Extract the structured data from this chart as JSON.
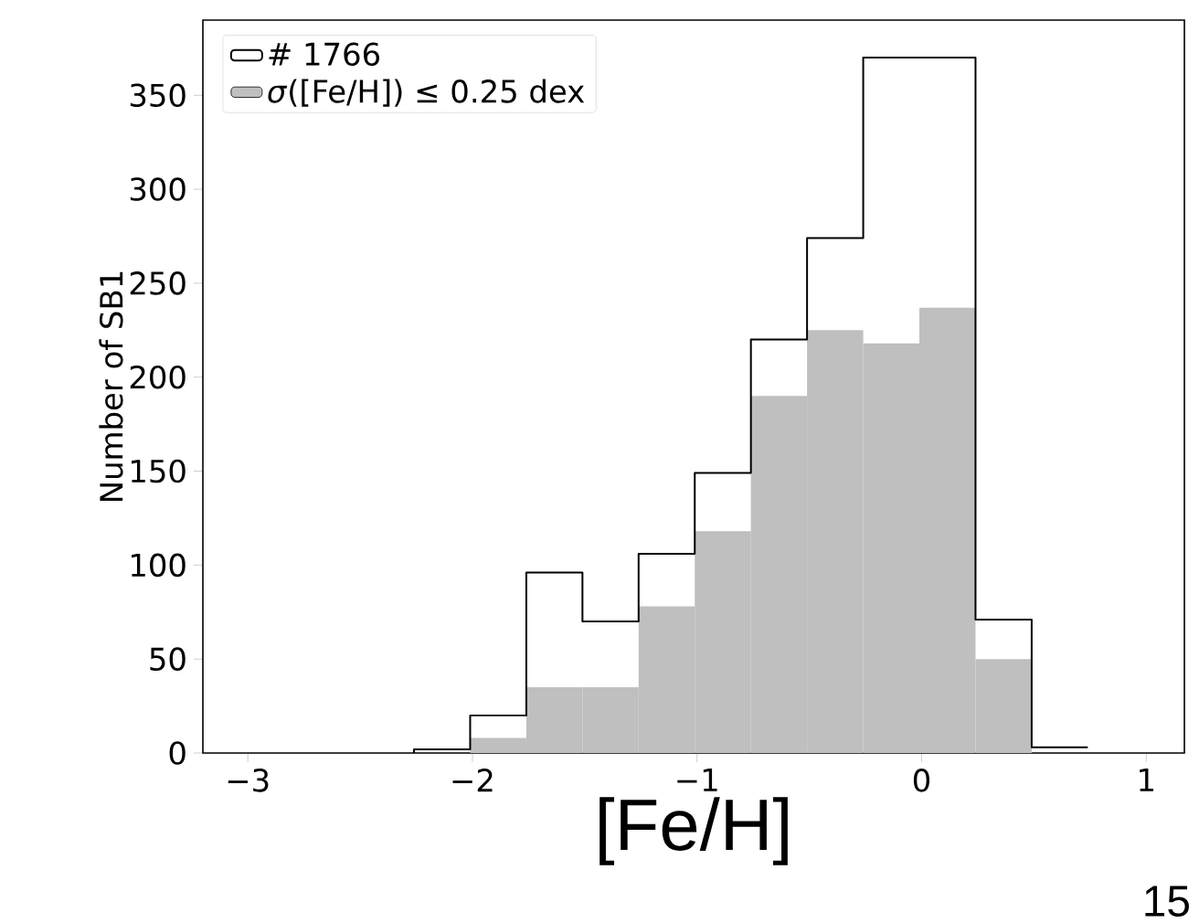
{
  "chart_data": {
    "type": "histogram",
    "xlabel": "[Fe/H]",
    "ylabel": "Number of SB1",
    "bins": [
      -2.26,
      -2.01,
      -1.76,
      -1.51,
      -1.26,
      -1.01,
      -0.76,
      -0.51,
      -0.26,
      -0.01,
      0.24,
      0.49,
      0.74
    ],
    "series": [
      {
        "name": "# 1766",
        "type": "step",
        "color": "#000000",
        "x": [
          -2.26,
          -2.01,
          -1.76,
          -1.51,
          -1.26,
          -1.01,
          -0.76,
          -0.51,
          -0.26,
          -0.01,
          0.24,
          0.49,
          0.74
        ],
        "values": [
          2,
          20,
          96,
          70,
          106,
          149,
          220,
          274,
          370,
          370,
          71,
          3,
          3
        ]
      },
      {
        "name": "*σ*([Fe/H]) ≤ 0.25 dex",
        "type": "histogram",
        "color": "#bfbfbf",
        "values": [
          0,
          8,
          35,
          35,
          78,
          118,
          190,
          225,
          218,
          237,
          50,
          0
        ]
      }
    ],
    "xlim": [
      -3.2,
      1.17
    ],
    "ylim": [
      0,
      390
    ],
    "xticks": [
      {
        "value": -3,
        "label": "−3"
      },
      {
        "value": -2,
        "label": "−2"
      },
      {
        "value": -1,
        "label": "−1"
      },
      0,
      1
    ],
    "yticks": [
      0,
      50,
      100,
      150,
      200,
      250,
      300,
      350
    ],
    "legend": "top left",
    "grid": false,
    "annotations": [
      "15"
    ]
  }
}
